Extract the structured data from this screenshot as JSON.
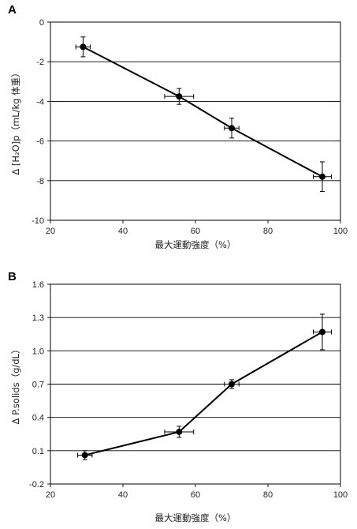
{
  "chart_data": [
    {
      "type": "line",
      "panel_label": "A",
      "xlabel": "最大運動強度（%）",
      "ylabel": "Δ [H₂O]p（mL/kg 体重）",
      "xlim": [
        20,
        100
      ],
      "ylim": [
        -10,
        0
      ],
      "xticks": [
        20,
        40,
        60,
        80,
        100
      ],
      "yticks": [
        0,
        -2,
        -4,
        -6,
        -8,
        -10
      ],
      "ytick_labels": [
        "0",
        "-2",
        "-4",
        "-6",
        "-8",
        "-10"
      ],
      "grid": "horizontal",
      "series": [
        {
          "x": [
            29,
            55.5,
            70,
            95
          ],
          "y": [
            -1.25,
            -3.75,
            -5.35,
            -7.8
          ],
          "x_err": [
            2,
            4,
            2,
            2.5
          ],
          "y_err": [
            0.5,
            0.4,
            0.5,
            0.75
          ]
        }
      ]
    },
    {
      "type": "line",
      "panel_label": "B",
      "xlabel": "最大運動強度（%）",
      "ylabel": "Δ P.solids（g/dL）",
      "xlim": [
        20,
        100
      ],
      "ylim": [
        -0.2,
        1.6
      ],
      "xticks": [
        20,
        40,
        60,
        80,
        100
      ],
      "yticks": [
        1.6,
        1.3,
        1.0,
        0.7,
        0.4,
        0.1,
        -0.2
      ],
      "ytick_labels": [
        "1.6",
        "1.3",
        "1.0",
        "0.7",
        "0.4",
        "0.1",
        "-0.2"
      ],
      "grid": "horizontal",
      "series": [
        {
          "x": [
            29.5,
            55.5,
            70,
            95
          ],
          "y": [
            0.06,
            0.27,
            0.7,
            1.17
          ],
          "x_err": [
            2,
            4,
            2,
            2.5
          ],
          "y_err": [
            0.04,
            0.05,
            0.04,
            0.16
          ]
        }
      ]
    }
  ]
}
